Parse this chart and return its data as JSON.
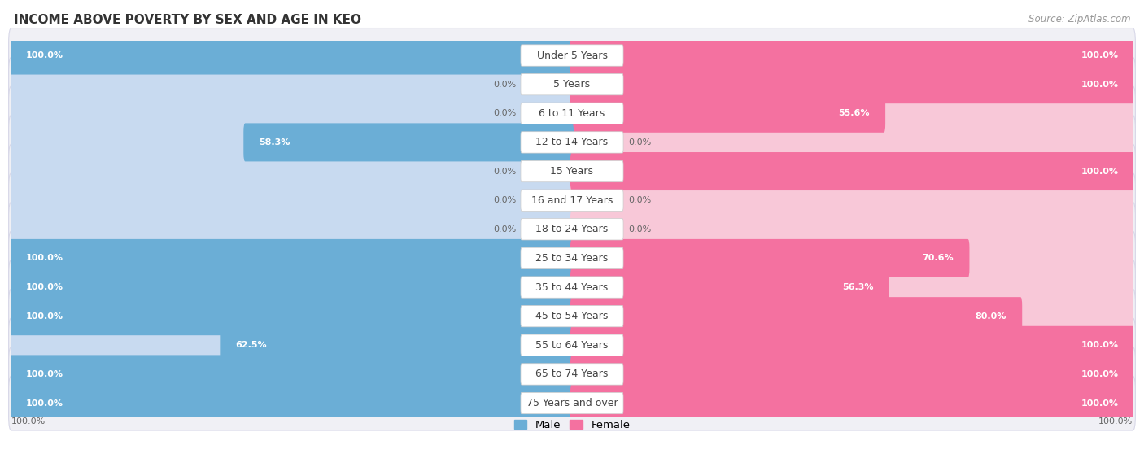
{
  "title": "INCOME ABOVE POVERTY BY SEX AND AGE IN KEO",
  "source": "Source: ZipAtlas.com",
  "categories": [
    "Under 5 Years",
    "5 Years",
    "6 to 11 Years",
    "12 to 14 Years",
    "15 Years",
    "16 and 17 Years",
    "18 to 24 Years",
    "25 to 34 Years",
    "35 to 44 Years",
    "45 to 54 Years",
    "55 to 64 Years",
    "65 to 74 Years",
    "75 Years and over"
  ],
  "male_values": [
    100.0,
    0.0,
    0.0,
    58.3,
    0.0,
    0.0,
    0.0,
    100.0,
    100.0,
    100.0,
    62.5,
    100.0,
    100.0
  ],
  "female_values": [
    100.0,
    100.0,
    55.6,
    0.0,
    100.0,
    0.0,
    0.0,
    70.6,
    56.3,
    80.0,
    100.0,
    100.0,
    100.0
  ],
  "male_color": "#6baed6",
  "female_color": "#f471a0",
  "male_label": "Male",
  "female_label": "Female",
  "bg_color": "#ffffff",
  "row_bg_color": "#f0f0f5",
  "row_border_color": "#d8d8e8",
  "bar_bg_male_color": "#c8daf0",
  "bar_bg_female_color": "#f8c8d8",
  "title_fontsize": 11,
  "label_fontsize": 9,
  "value_fontsize": 8,
  "source_fontsize": 8.5
}
